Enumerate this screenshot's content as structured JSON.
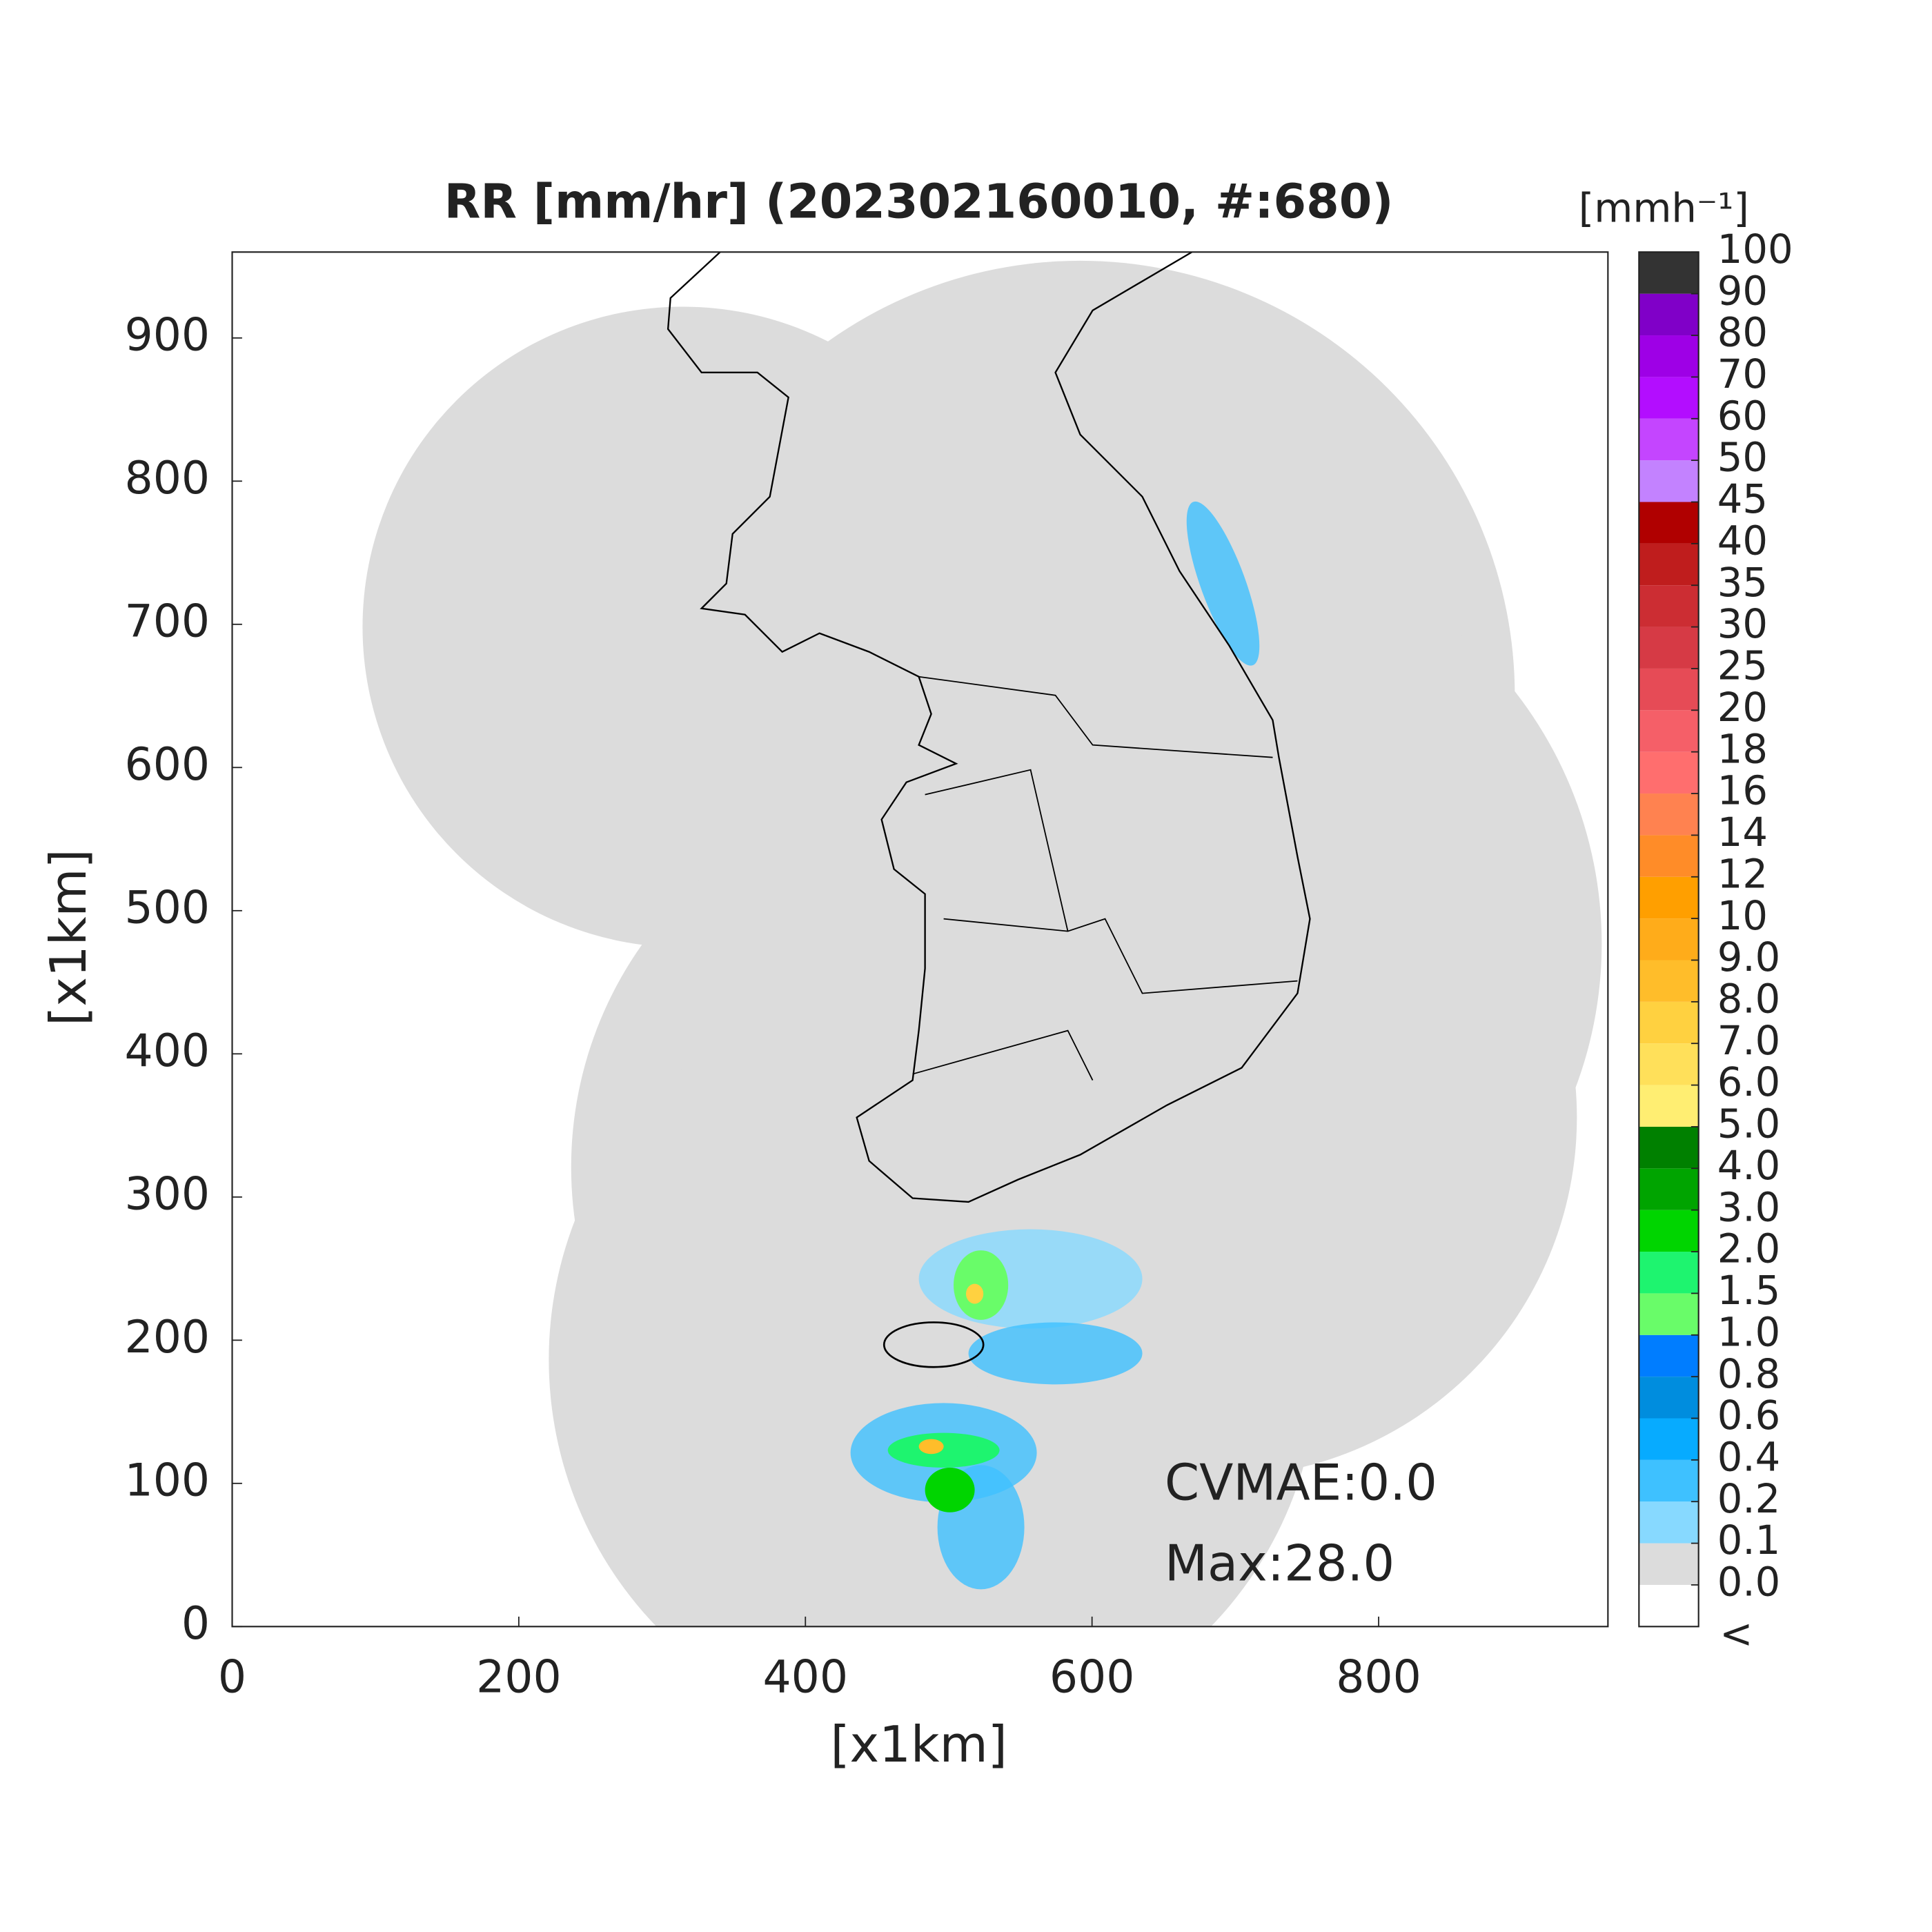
{
  "chart_data": {
    "type": "map",
    "title": "RR [mm/hr] (202302160010, #:680)",
    "xlabel": "[x1km]",
    "ylabel": "[x1km]",
    "xlim": [
      0,
      960
    ],
    "ylim": [
      0,
      960
    ],
    "xticks": [
      0,
      200,
      400,
      600,
      800
    ],
    "yticks": [
      0,
      100,
      200,
      300,
      400,
      500,
      600,
      700,
      800,
      900
    ],
    "annotations": [
      "CVMAE:0.0",
      "Max:28.0"
    ],
    "colorbar": {
      "unit": "[mmh⁻¹]",
      "below_label": "<",
      "ticks": [
        {
          "value": 0,
          "label": "0.0"
        },
        0.1,
        0.2,
        0.4,
        0.6,
        0.8,
        {
          "value": 1,
          "label": "1.0"
        },
        1.5,
        {
          "value": 2,
          "label": "2.0"
        },
        {
          "value": 3,
          "label": "3.0"
        },
        {
          "value": 4,
          "label": "4.0"
        },
        {
          "value": 5,
          "label": "5.0"
        },
        {
          "value": 6,
          "label": "6.0"
        },
        {
          "value": 7,
          "label": "7.0"
        },
        {
          "value": 8,
          "label": "8.0"
        },
        {
          "value": 9,
          "label": "9.0"
        },
        10,
        12,
        14,
        16,
        18,
        20,
        25,
        30,
        35,
        40,
        45,
        50,
        60,
        70,
        80,
        90,
        100
      ],
      "colors": [
        "#ffffff",
        "#dcdcdc",
        "#87d9ff",
        "#3ec1ff",
        "#07abff",
        "#008dde",
        "#007dff",
        "#69fc69",
        "#1ef46f",
        "#00d500",
        "#00a400",
        "#008000",
        "#ffee72",
        "#ffe05a",
        "#ffd140",
        "#ffbd2a",
        "#ffac1a",
        "#ff9f00",
        "#ff8c28",
        "#ff8250",
        "#ff6e6e",
        "#f55f68",
        "#e64b56",
        "#d63a45",
        "#cc2d33",
        "#bf1d1d",
        "#b00000",
        "#c382ff",
        "#c445ff",
        "#b30dff",
        "#9e00e6",
        "#8000c8",
        "#333333"
      ]
    }
  }
}
